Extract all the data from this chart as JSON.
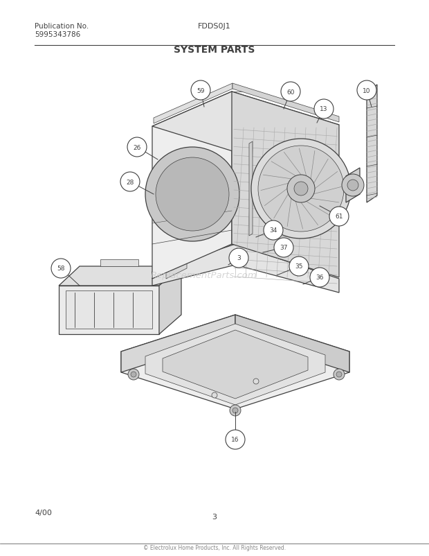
{
  "title": "SYSTEM PARTS",
  "pub_label": "Publication No.",
  "pub_number": "5995343786",
  "model": "FDDS0J1",
  "page": "3",
  "date": "4/00",
  "watermark": "ReplacementParts.com",
  "bg_color": "#ffffff",
  "line_color": "#404040",
  "face_light": "#f0f0f0",
  "face_mid": "#e0e0e0",
  "face_dark": "#d0d0d0",
  "face_darker": "#c0c0c0"
}
